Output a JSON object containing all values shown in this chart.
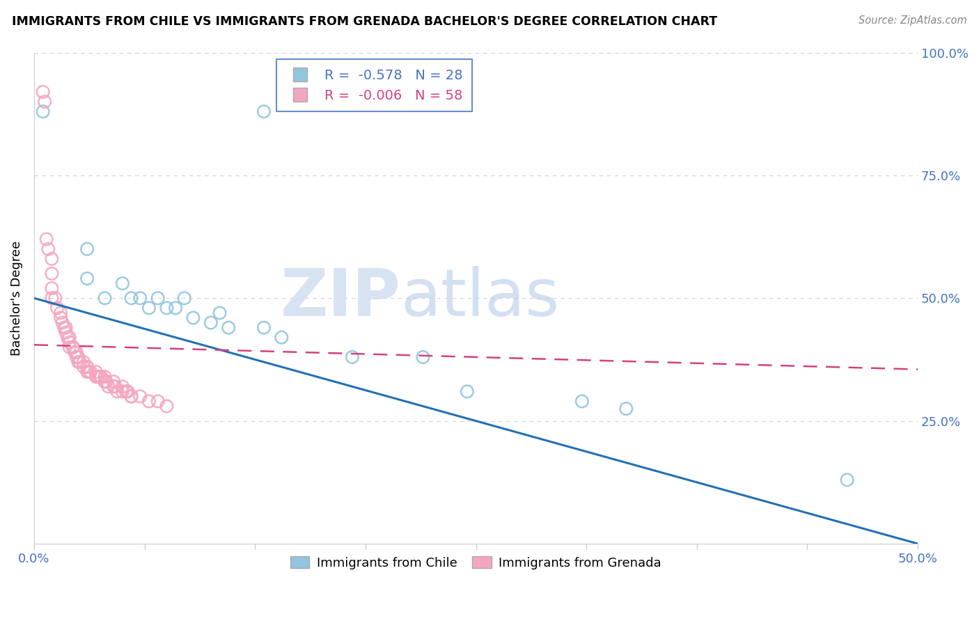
{
  "title": "IMMIGRANTS FROM CHILE VS IMMIGRANTS FROM GRENADA BACHELOR'S DEGREE CORRELATION CHART",
  "source": "Source: ZipAtlas.com",
  "ylabel": "Bachelor's Degree",
  "y_ticks": [
    0.0,
    0.25,
    0.5,
    0.75,
    1.0
  ],
  "x_ticks": [
    0.0,
    0.0625,
    0.125,
    0.1875,
    0.25,
    0.3125,
    0.375,
    0.4375,
    0.5
  ],
  "xlim": [
    0.0,
    0.5
  ],
  "ylim": [
    0.0,
    1.0
  ],
  "chile_color": "#92c5de",
  "grenada_color": "#f4a6c0",
  "chile_trend_color": "#2171b5",
  "grenada_trend_color": "#d44080",
  "chile_scatter_x": [
    0.005,
    0.13,
    0.03,
    0.03,
    0.04,
    0.05,
    0.055,
    0.06,
    0.065,
    0.07,
    0.075,
    0.08,
    0.085,
    0.09,
    0.1,
    0.105,
    0.11,
    0.13,
    0.14,
    0.18,
    0.22,
    0.245,
    0.31,
    0.335,
    0.46
  ],
  "chile_scatter_y": [
    0.88,
    0.88,
    0.6,
    0.54,
    0.5,
    0.53,
    0.5,
    0.5,
    0.48,
    0.5,
    0.48,
    0.48,
    0.5,
    0.46,
    0.45,
    0.47,
    0.44,
    0.44,
    0.42,
    0.38,
    0.38,
    0.31,
    0.29,
    0.275,
    0.13
  ],
  "grenada_scatter_x": [
    0.005,
    0.006,
    0.007,
    0.008,
    0.01,
    0.01,
    0.01,
    0.01,
    0.012,
    0.013,
    0.015,
    0.015,
    0.016,
    0.017,
    0.018,
    0.018,
    0.019,
    0.02,
    0.02,
    0.02,
    0.022,
    0.022,
    0.023,
    0.024,
    0.024,
    0.025,
    0.025,
    0.026,
    0.028,
    0.028,
    0.03,
    0.03,
    0.03,
    0.031,
    0.032,
    0.035,
    0.035,
    0.036,
    0.037,
    0.038,
    0.04,
    0.04,
    0.04,
    0.041,
    0.042,
    0.045,
    0.045,
    0.046,
    0.047,
    0.05,
    0.05,
    0.052,
    0.053,
    0.055,
    0.055,
    0.06,
    0.065,
    0.07,
    0.075
  ],
  "grenada_scatter_y": [
    0.92,
    0.9,
    0.62,
    0.6,
    0.58,
    0.55,
    0.52,
    0.5,
    0.5,
    0.48,
    0.47,
    0.46,
    0.45,
    0.44,
    0.44,
    0.43,
    0.42,
    0.42,
    0.41,
    0.4,
    0.4,
    0.4,
    0.39,
    0.39,
    0.38,
    0.38,
    0.37,
    0.37,
    0.37,
    0.36,
    0.36,
    0.36,
    0.35,
    0.35,
    0.35,
    0.35,
    0.34,
    0.34,
    0.34,
    0.34,
    0.34,
    0.33,
    0.33,
    0.33,
    0.32,
    0.33,
    0.32,
    0.32,
    0.31,
    0.32,
    0.31,
    0.31,
    0.31,
    0.3,
    0.3,
    0.3,
    0.29,
    0.29,
    0.28
  ],
  "chile_line_x": [
    0.0,
    0.5
  ],
  "chile_line_y": [
    0.5,
    0.0
  ],
  "grenada_line_x": [
    0.0,
    0.5
  ],
  "grenada_line_y": [
    0.405,
    0.355
  ],
  "watermark_zip": "ZIP",
  "watermark_atlas": "atlas"
}
